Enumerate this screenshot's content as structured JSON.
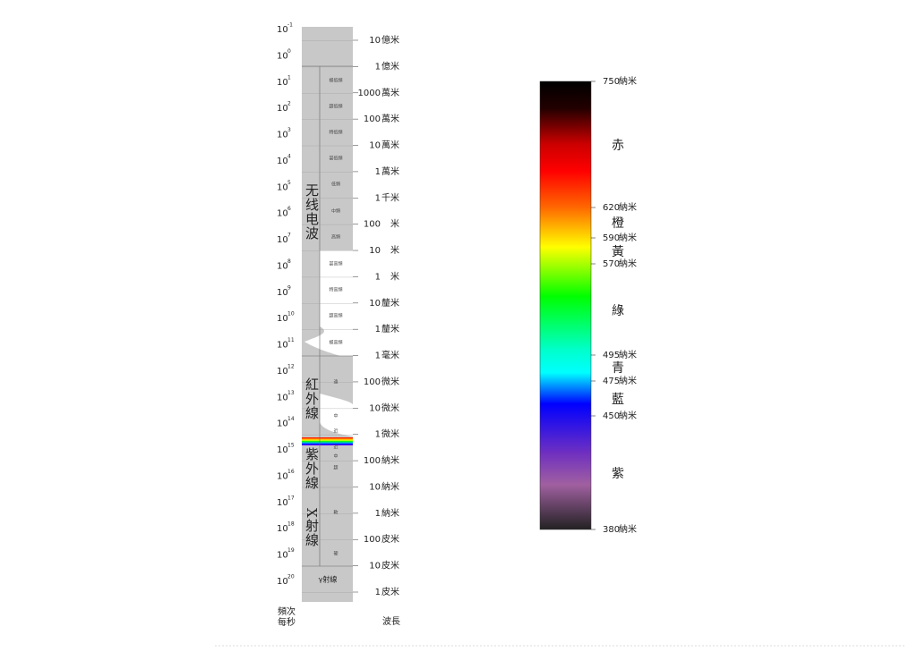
{
  "frequency": {
    "base": "10",
    "exponents": [
      "-1",
      "0",
      "1",
      "2",
      "3",
      "4",
      "5",
      "6",
      "7",
      "8",
      "9",
      "10",
      "11",
      "12",
      "13",
      "14",
      "15",
      "16",
      "17",
      "18",
      "19",
      "20"
    ],
    "caption": [
      "頻次",
      "每秒"
    ]
  },
  "wavelength": {
    "caption": "波長",
    "marks": [
      {
        "value": "10",
        "unit": "億米"
      },
      {
        "value": "1",
        "unit": "億米"
      },
      {
        "value": "1000",
        "unit": "萬米"
      },
      {
        "value": "100",
        "unit": "萬米"
      },
      {
        "value": "10",
        "unit": "萬米"
      },
      {
        "value": "1",
        "unit": "萬米"
      },
      {
        "value": "1",
        "unit": "千米"
      },
      {
        "value": "100",
        "unit": "米"
      },
      {
        "value": "10",
        "unit": "米"
      },
      {
        "value": "1",
        "unit": "米"
      },
      {
        "value": "10",
        "unit": "釐米"
      },
      {
        "value": "1",
        "unit": "釐米"
      },
      {
        "value": "1",
        "unit": "毫米"
      },
      {
        "value": "100",
        "unit": "微米"
      },
      {
        "value": "10",
        "unit": "微米"
      },
      {
        "value": "1",
        "unit": "微米"
      },
      {
        "value": "100",
        "unit": "納米"
      },
      {
        "value": "10",
        "unit": "納米"
      },
      {
        "value": "1",
        "unit": "納米"
      },
      {
        "value": "100",
        "unit": "皮米"
      },
      {
        "value": "10",
        "unit": "皮米"
      },
      {
        "value": "1",
        "unit": "皮米"
      }
    ]
  },
  "bands": [
    "極低頻",
    "超低頻",
    "特低頻",
    "甚低頻",
    "低頻",
    "中頻",
    "高頻",
    "甚高頻",
    "特高頻",
    "超高頻",
    "極高頻",
    "遠",
    "中",
    "近",
    "近",
    "中",
    "超",
    "軟",
    "硬",
    "γ射線"
  ],
  "regions": [
    "无线电波",
    "紅外線",
    "紫外線",
    "X射線"
  ],
  "visible": {
    "marks": [
      {
        "value": "750",
        "unit": "納米"
      },
      {
        "value": "620",
        "unit": "納米"
      },
      {
        "value": "590",
        "unit": "納米"
      },
      {
        "value": "570",
        "unit": "納米"
      },
      {
        "value": "495",
        "unit": "納米"
      },
      {
        "value": "475",
        "unit": "納米"
      },
      {
        "value": "450",
        "unit": "納米"
      },
      {
        "value": "380",
        "unit": "納米"
      }
    ],
    "colors": [
      "赤",
      "橙",
      "黃",
      "綠",
      "青",
      "藍",
      "紫"
    ]
  }
}
